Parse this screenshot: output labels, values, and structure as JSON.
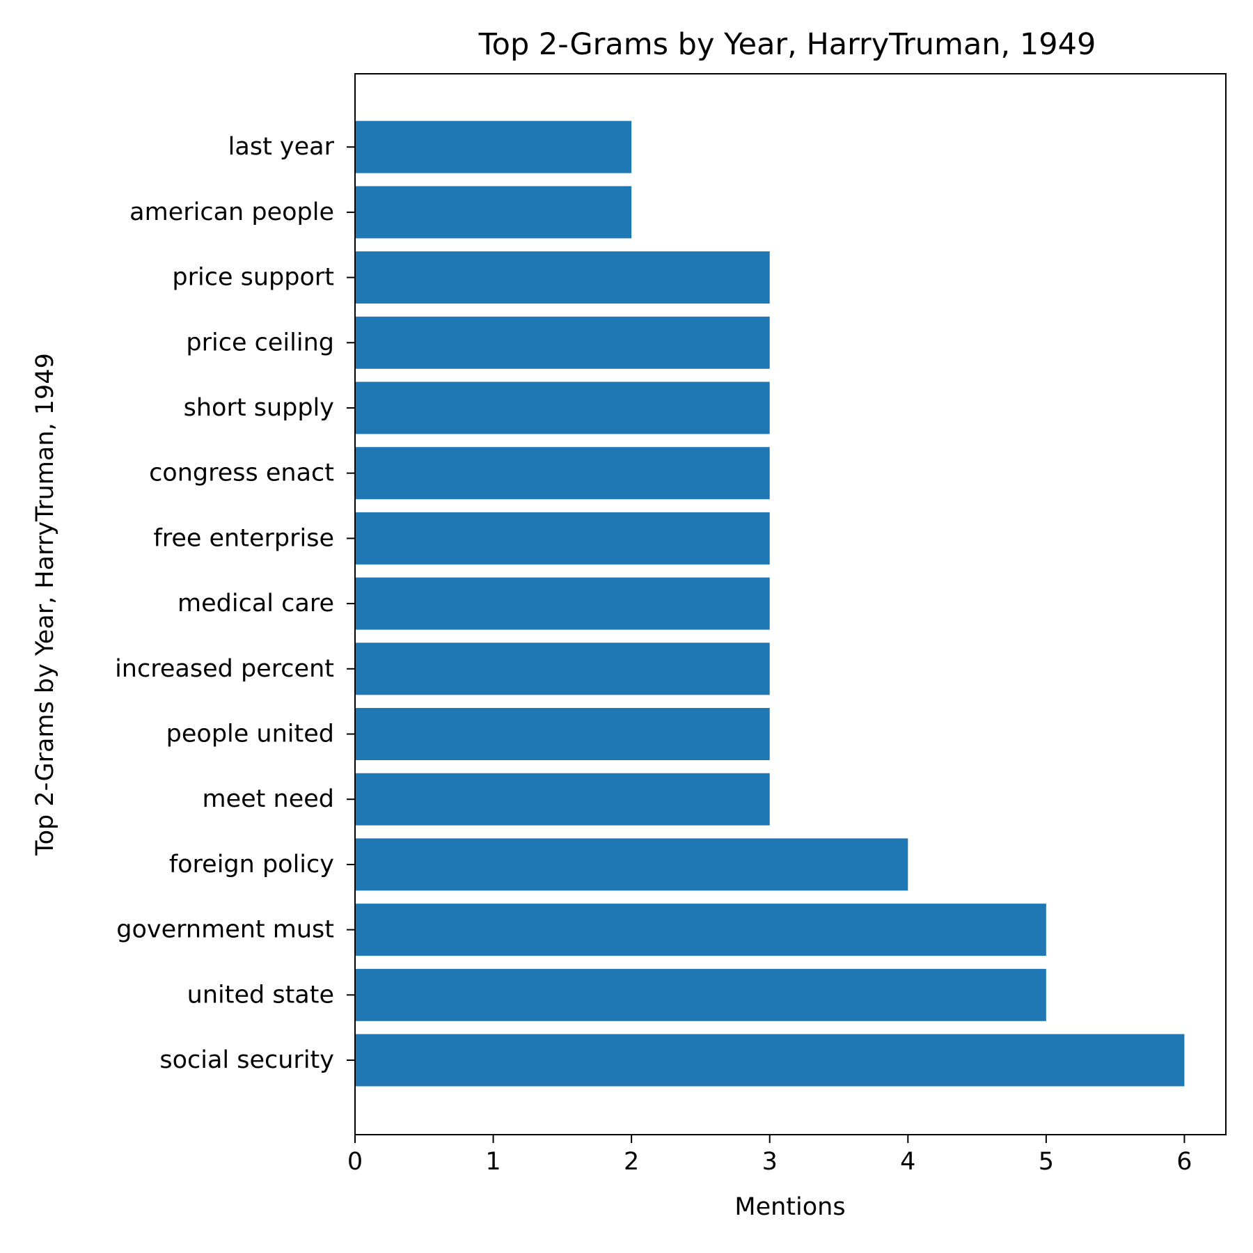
{
  "chart_data": {
    "type": "bar",
    "orientation": "horizontal",
    "title": "Top 2-Grams by Year, HarryTruman, 1949",
    "xlabel": "Mentions",
    "ylabel": "Top 2-Grams by Year, HarryTruman, 1949",
    "categories": [
      "social security",
      "united state",
      "government must",
      "foreign policy",
      "meet need",
      "people united",
      "increased percent",
      "medical care",
      "free enterprise",
      "congress enact",
      "short supply",
      "price ceiling",
      "price support",
      "american people",
      "last year"
    ],
    "values": [
      6,
      5,
      5,
      4,
      3,
      3,
      3,
      3,
      3,
      3,
      3,
      3,
      3,
      2,
      2
    ],
    "xlim": [
      0,
      6.3
    ],
    "xticks": [
      "0",
      "1",
      "2",
      "3",
      "4",
      "5",
      "6"
    ],
    "grid": false,
    "bar_color": "#1f77b4"
  }
}
